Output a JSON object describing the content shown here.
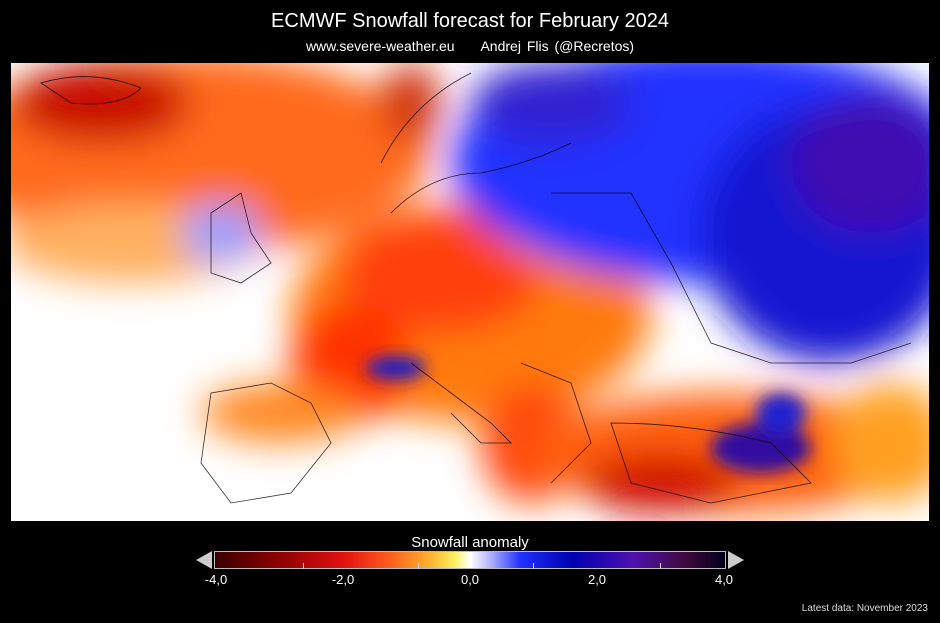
{
  "header": {
    "title": "ECMWF Snowfall forecast for February 2024",
    "website": "www.severe-weather.eu",
    "author": "Andrej Flis (@Recretos)"
  },
  "map": {
    "region": "Europe",
    "variable": "snowfall anomaly"
  },
  "colorbar": {
    "title": "Snowfall anomaly",
    "ticks": [
      "-4,0",
      "-2,0",
      "0,0",
      "2,0",
      "4,0"
    ],
    "min": -4,
    "max": 4,
    "colors": {
      "negative_max": "#3a0000",
      "negative": "#e01010",
      "neutral": "#ffffff",
      "positive": "#2030ff",
      "positive_max": "#000018"
    }
  },
  "footer": {
    "latest_data": "Latest data: November 2023"
  }
}
